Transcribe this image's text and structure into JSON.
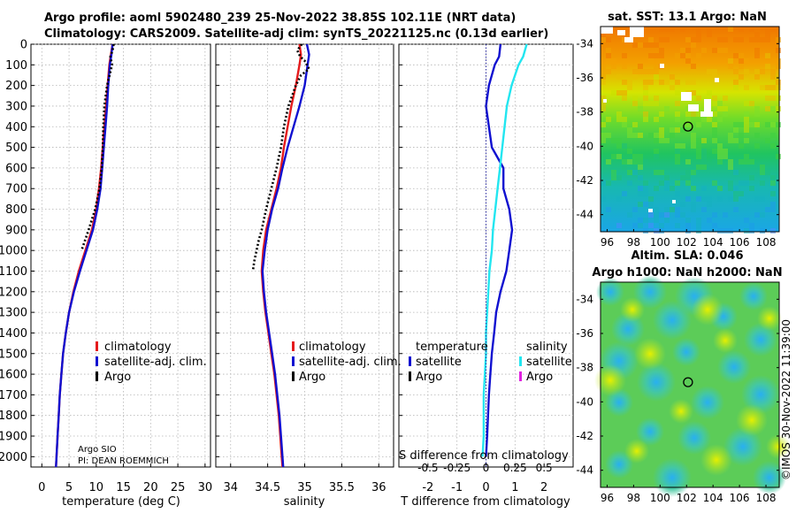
{
  "header": {
    "line1": "Argo profile: aoml 5902480_239 25-Nov-2022 38.85S 102.11E (NRT data)",
    "line2": "Climatology: CARS2009. Satellite-adj clim: synTS_20221125.nc (0.13d earlier)"
  },
  "colors": {
    "climatology": "#e41a1c",
    "satellite": "#1010d0",
    "argo": "#000000",
    "sal_satellite": "#22e6f0",
    "sal_argo": "#e020e0"
  },
  "chart_data": [
    {
      "type": "line",
      "name": "temperature",
      "xlabel": "temperature (deg C)",
      "ylabel": "",
      "xlim": [
        -2,
        31
      ],
      "ylim": [
        2050,
        0
      ],
      "xticks": [
        0,
        5,
        10,
        15,
        20,
        25,
        30
      ],
      "xticklabels": [
        "0",
        "5",
        "10",
        "15",
        "20",
        "25",
        "30"
      ],
      "yticks": [
        0,
        100,
        200,
        300,
        400,
        500,
        600,
        700,
        800,
        900,
        1000,
        1100,
        1200,
        1300,
        1400,
        1500,
        1600,
        1700,
        1800,
        1900,
        2000
      ],
      "yticklabels": [
        "0",
        "100",
        "200",
        "300",
        "400",
        "500",
        "600",
        "700",
        "800",
        "900",
        "1000",
        "1100",
        "1200",
        "1300",
        "1400",
        "1500",
        "1600",
        "1700",
        "1800",
        "1900",
        "2000"
      ],
      "legend": [
        "climatology",
        "satellite-adj. clim.",
        "Argo"
      ],
      "annotation": [
        "Argo SIO",
        "PI: DEAN ROEMMICH"
      ],
      "series": [
        {
          "name": "climatology",
          "x": [
            13.0,
            12.7,
            12.4,
            12.1,
            11.8,
            11.5,
            11.2,
            10.9,
            10.5,
            10.0,
            9.2,
            8.0,
            6.8,
            5.8,
            5.0,
            4.4,
            3.9,
            3.6,
            3.3,
            3.1,
            2.9,
            2.7,
            2.6
          ],
          "y": [
            0,
            50,
            100,
            200,
            300,
            400,
            500,
            600,
            700,
            800,
            900,
            1000,
            1100,
            1200,
            1300,
            1400,
            1500,
            1600,
            1700,
            1800,
            1900,
            2000,
            2050
          ]
        },
        {
          "name": "satellite-adj. clim.",
          "x": [
            13.0,
            12.8,
            12.5,
            12.2,
            12.0,
            11.7,
            11.4,
            11.1,
            10.8,
            10.2,
            9.4,
            8.2,
            7.0,
            5.9,
            5.0,
            4.4,
            3.9,
            3.6,
            3.3,
            3.1,
            2.9,
            2.7,
            2.6
          ],
          "y": [
            0,
            50,
            100,
            200,
            300,
            400,
            500,
            600,
            700,
            800,
            900,
            1000,
            1100,
            1200,
            1300,
            1400,
            1500,
            1600,
            1700,
            1800,
            1900,
            2000,
            2050
          ]
        },
        {
          "name": "Argo",
          "x": [
            13.2,
            13.0,
            12.6,
            12.9,
            12.0,
            11.5,
            11.3,
            11.2,
            11.0,
            10.6,
            9.8,
            8.6,
            7.3
          ],
          "y": [
            0,
            30,
            60,
            100,
            200,
            300,
            400,
            500,
            600,
            700,
            800,
            900,
            1000
          ]
        }
      ]
    },
    {
      "type": "line",
      "name": "salinity",
      "xlabel": "salinity",
      "ylabel": "",
      "xlim": [
        33.8,
        36.2
      ],
      "ylim": [
        2050,
        0
      ],
      "xticks": [
        34,
        34.5,
        35,
        35.5,
        36
      ],
      "xticklabels": [
        "34",
        "34.5",
        "35",
        "35.5",
        "36"
      ],
      "legend": [
        "climatology",
        "satellite-adj. clim.",
        "Argo"
      ],
      "series": [
        {
          "name": "climatology",
          "x": [
            34.93,
            34.95,
            34.93,
            34.88,
            34.82,
            34.77,
            34.72,
            34.68,
            34.62,
            34.55,
            34.48,
            34.44,
            34.42,
            34.44,
            34.47,
            34.51,
            34.55,
            34.59,
            34.62,
            34.65,
            34.67,
            34.69,
            34.7
          ],
          "y": [
            0,
            50,
            100,
            200,
            300,
            400,
            500,
            600,
            700,
            800,
            900,
            1000,
            1100,
            1200,
            1300,
            1400,
            1500,
            1600,
            1700,
            1800,
            1900,
            2000,
            2050
          ]
        },
        {
          "name": "satellite-adj. clim.",
          "x": [
            35.03,
            35.06,
            35.04,
            35.0,
            34.93,
            34.85,
            34.77,
            34.7,
            34.64,
            34.56,
            34.5,
            34.46,
            34.43,
            34.45,
            34.48,
            34.52,
            34.56,
            34.6,
            34.63,
            34.66,
            34.68,
            34.7,
            34.71
          ],
          "y": [
            0,
            50,
            100,
            200,
            300,
            400,
            500,
            600,
            700,
            800,
            900,
            1000,
            1100,
            1200,
            1300,
            1400,
            1500,
            1600,
            1700,
            1800,
            1900,
            2000,
            2050
          ]
        },
        {
          "name": "Argo",
          "x": [
            34.96,
            34.9,
            34.94,
            35.0,
            35.03,
            35.06,
            34.95,
            34.88,
            34.78,
            34.72,
            34.68,
            34.62,
            34.55,
            34.48,
            34.42,
            34.38,
            34.35,
            34.32,
            34.3
          ],
          "y": [
            0,
            30,
            60,
            80,
            100,
            120,
            150,
            200,
            300,
            400,
            500,
            600,
            700,
            800,
            900,
            950,
            1000,
            1050,
            1100
          ]
        }
      ]
    },
    {
      "type": "line",
      "name": "difference",
      "xlabel": "T difference from climatology",
      "top_label": "S difference from climatology",
      "ylabel": "",
      "xlim": [
        -3,
        3
      ],
      "ylim": [
        2050,
        0
      ],
      "xticks": [
        -2,
        -1,
        0,
        1,
        2
      ],
      "xticklabels": [
        "-2",
        "-1",
        "0",
        "1",
        "2"
      ],
      "sticks": [
        -0.5,
        -0.25,
        0,
        0.25,
        0.5
      ],
      "sticklabels": [
        "-0.5",
        "-0.25",
        "0",
        "0.25",
        "0.5"
      ],
      "legend_temperature": [
        "temperature",
        "satellite",
        "Argo"
      ],
      "legend_salinity": [
        "salinity",
        "satellite",
        "Argo"
      ],
      "series": [
        {
          "name": "T satellite",
          "x": [
            0.5,
            0.45,
            0.3,
            0.1,
            0.0,
            0.1,
            0.2,
            0.6,
            0.6,
            0.8,
            0.9,
            0.8,
            0.7,
            0.5,
            0.35,
            0.28,
            0.2,
            0.15,
            0.1,
            0.07,
            0.04,
            0.0
          ],
          "y": [
            0,
            60,
            100,
            200,
            300,
            400,
            500,
            600,
            700,
            800,
            900,
            1000,
            1100,
            1200,
            1300,
            1400,
            1500,
            1600,
            1700,
            1800,
            1900,
            2000
          ]
        },
        {
          "name": "S satellite",
          "x": [
            0.35,
            0.32,
            0.28,
            0.22,
            0.18,
            0.16,
            0.14,
            0.12,
            0.1,
            0.08,
            0.06,
            0.05,
            0.03,
            0.02,
            0.01,
            0.0,
            0.0,
            -0.01,
            -0.02,
            -0.02,
            -0.02,
            -0.03
          ],
          "y": [
            0,
            60,
            100,
            200,
            300,
            400,
            500,
            600,
            700,
            800,
            900,
            1000,
            1100,
            1200,
            1300,
            1400,
            1500,
            1600,
            1700,
            1800,
            1900,
            2000
          ]
        }
      ]
    }
  ],
  "maps": {
    "sst": {
      "title": "sat. SST: 13.1 Argo: NaN",
      "xticklabels": [
        "96",
        "98",
        "100",
        "102",
        "104",
        "106",
        "108"
      ],
      "yticklabels": [
        "-34",
        "-36",
        "-38",
        "-40",
        "-42",
        "-44"
      ],
      "xlim": [
        95.5,
        109
      ],
      "ylim": [
        -45,
        -33
      ]
    },
    "sla": {
      "title1": "Altim. SLA: 0.046",
      "title2": "Argo h1000: NaN h2000: NaN",
      "xticklabels": [
        "96",
        "98",
        "100",
        "102",
        "104",
        "106",
        "108"
      ],
      "yticklabels": [
        "-34",
        "-36",
        "-38",
        "-40",
        "-42",
        "-44"
      ],
      "xlim": [
        95.5,
        109
      ],
      "ylim": [
        -45,
        -33
      ]
    },
    "marker": {
      "lon": 102.11,
      "lat": -38.85
    }
  },
  "credit": "©IMOS 30-Nov-2022 11:39:00"
}
